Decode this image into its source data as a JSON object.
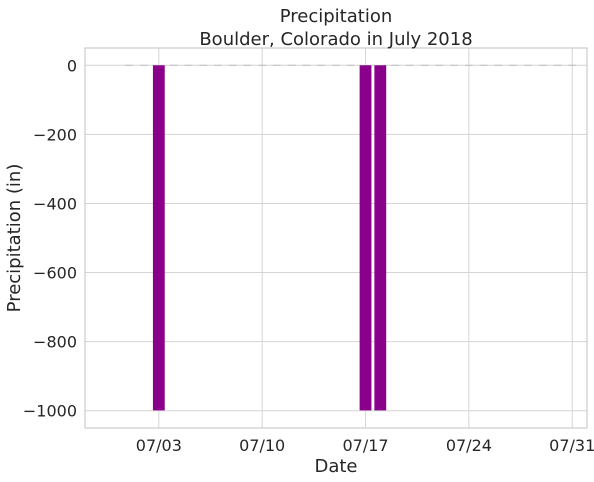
{
  "chart_data": {
    "type": "bar",
    "title": "Precipitation\nBoulder, Colorado in July 2018",
    "title_lines": [
      "Precipitation",
      "Boulder, Colorado in July 2018"
    ],
    "xlabel": "Date",
    "ylabel": "Precipitation (in)",
    "bar_color": "#8b008b",
    "missing_marker_color": "#bdbdbd",
    "xlim": [
      "2018-06-28",
      "2018-08-01"
    ],
    "ylim": [
      -1050,
      50
    ],
    "x_ticks": [
      {
        "date": "2018-07-03",
        "label": "07/03"
      },
      {
        "date": "2018-07-10",
        "label": "07/10"
      },
      {
        "date": "2018-07-17",
        "label": "07/17"
      },
      {
        "date": "2018-07-24",
        "label": "07/24"
      },
      {
        "date": "2018-07-31",
        "label": "07/31"
      }
    ],
    "y_ticks": [
      {
        "value": 0,
        "label": "0"
      },
      {
        "value": -200,
        "label": "−200"
      },
      {
        "value": -400,
        "label": "−400"
      },
      {
        "value": -600,
        "label": "−600"
      },
      {
        "value": -800,
        "label": "−800"
      },
      {
        "value": -1000,
        "label": "−1000"
      }
    ],
    "grid": true,
    "data": [
      {
        "date": "2018-07-01",
        "value": 0
      },
      {
        "date": "2018-07-02",
        "value": 0
      },
      {
        "date": "2018-07-03",
        "value": -999
      },
      {
        "date": "2018-07-04",
        "value": 0
      },
      {
        "date": "2018-07-05",
        "value": 0
      },
      {
        "date": "2018-07-06",
        "value": 0
      },
      {
        "date": "2018-07-07",
        "value": 0
      },
      {
        "date": "2018-07-08",
        "value": 0
      },
      {
        "date": "2018-07-09",
        "value": 0
      },
      {
        "date": "2018-07-10",
        "value": 0
      },
      {
        "date": "2018-07-11",
        "value": 0
      },
      {
        "date": "2018-07-12",
        "value": 0
      },
      {
        "date": "2018-07-13",
        "value": 0
      },
      {
        "date": "2018-07-14",
        "value": 0
      },
      {
        "date": "2018-07-15",
        "value": 0
      },
      {
        "date": "2018-07-16",
        "value": 0
      },
      {
        "date": "2018-07-17",
        "value": -999
      },
      {
        "date": "2018-07-18",
        "value": -999
      },
      {
        "date": "2018-07-19",
        "value": 0
      },
      {
        "date": "2018-07-20",
        "value": 0
      },
      {
        "date": "2018-07-21",
        "value": 0
      },
      {
        "date": "2018-07-22",
        "value": 0
      },
      {
        "date": "2018-07-23",
        "value": 0
      },
      {
        "date": "2018-07-24",
        "value": 0
      },
      {
        "date": "2018-07-25",
        "value": 0
      },
      {
        "date": "2018-07-26",
        "value": 0
      },
      {
        "date": "2018-07-27",
        "value": 0
      },
      {
        "date": "2018-07-28",
        "value": 0
      },
      {
        "date": "2018-07-29",
        "value": 0
      },
      {
        "date": "2018-07-30",
        "value": 0
      },
      {
        "date": "2018-07-31",
        "value": 0
      }
    ]
  }
}
